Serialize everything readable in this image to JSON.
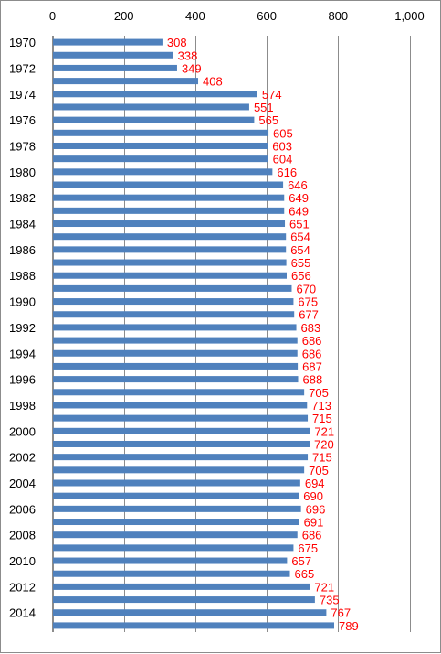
{
  "chart_data": {
    "type": "bar",
    "orientation": "horizontal",
    "title": "",
    "xlabel": "",
    "ylabel": "",
    "xlim": [
      0,
      1000
    ],
    "x_ticks": [
      0,
      200,
      400,
      600,
      800,
      1000
    ],
    "x_tick_labels": [
      "0",
      "200",
      "400",
      "600",
      "800",
      "1,000"
    ],
    "x_axis_position": "top",
    "grid": "vertical major gridlines",
    "legend": "none",
    "bar_color": "#4f81bd",
    "data_label_color": "#ff0000",
    "categories": [
      "1970",
      "1971",
      "1972",
      "1973",
      "1974",
      "1975",
      "1976",
      "1977",
      "1978",
      "1979",
      "1980",
      "1981",
      "1982",
      "1983",
      "1984",
      "1985",
      "1986",
      "1987",
      "1988",
      "1989",
      "1990",
      "1991",
      "1992",
      "1993",
      "1994",
      "1995",
      "1996",
      "1997",
      "1998",
      "1999",
      "2000",
      "2001",
      "2002",
      "2003",
      "2004",
      "2005",
      "2006",
      "2007",
      "2008",
      "2009",
      "2010",
      "2011",
      "2012",
      "2013",
      "2014",
      "2015"
    ],
    "category_labels_shown": [
      "1970",
      "",
      "1972",
      "",
      "1974",
      "",
      "1976",
      "",
      "1978",
      "",
      "1980",
      "",
      "1982",
      "",
      "1984",
      "",
      "1986",
      "",
      "1988",
      "",
      "1990",
      "",
      "1992",
      "",
      "1994",
      "",
      "1996",
      "",
      "1998",
      "",
      "2000",
      "",
      "2002",
      "",
      "2004",
      "",
      "2006",
      "",
      "2008",
      "",
      "2010",
      "",
      "2012",
      "",
      "2014",
      ""
    ],
    "values": [
      308,
      338,
      349,
      408,
      574,
      551,
      565,
      605,
      603,
      604,
      616,
      646,
      649,
      649,
      651,
      654,
      654,
      655,
      656,
      670,
      675,
      677,
      683,
      686,
      686,
      687,
      688,
      705,
      713,
      715,
      721,
      720,
      715,
      705,
      694,
      690,
      696,
      691,
      686,
      675,
      657,
      665,
      721,
      735,
      767,
      789
    ]
  }
}
